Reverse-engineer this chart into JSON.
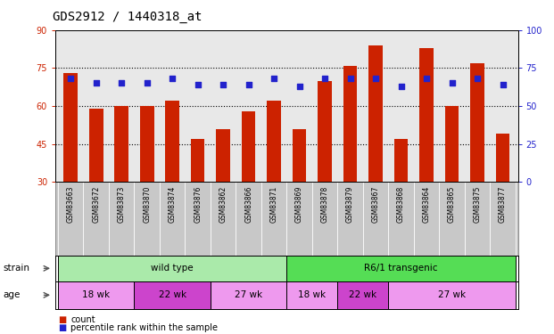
{
  "title": "GDS2912 / 1440318_at",
  "samples": [
    "GSM83663",
    "GSM83672",
    "GSM83873",
    "GSM83870",
    "GSM83874",
    "GSM83876",
    "GSM83862",
    "GSM83866",
    "GSM83871",
    "GSM83869",
    "GSM83878",
    "GSM83879",
    "GSM83867",
    "GSM83868",
    "GSM83864",
    "GSM83865",
    "GSM83875",
    "GSM83877"
  ],
  "counts": [
    73,
    59,
    60,
    60,
    62,
    47,
    51,
    58,
    62,
    51,
    70,
    76,
    84,
    47,
    83,
    60,
    77,
    49
  ],
  "percentiles": [
    68,
    65,
    65,
    65,
    68,
    64,
    64,
    64,
    68,
    63,
    68,
    68,
    68,
    63,
    68,
    65,
    68,
    64
  ],
  "ylim_left": [
    30,
    90
  ],
  "ylim_right": [
    0,
    100
  ],
  "yticks_left": [
    30,
    45,
    60,
    75,
    90
  ],
  "yticks_right": [
    0,
    25,
    50,
    75,
    100
  ],
  "bar_color": "#cc2200",
  "dot_color": "#2222cc",
  "background_color": "#e8e8e8",
  "strain_groups": [
    {
      "label": "wild type",
      "start": 0,
      "end": 9,
      "color": "#aaeaaa"
    },
    {
      "label": "R6/1 transgenic",
      "start": 9,
      "end": 18,
      "color": "#55dd55"
    }
  ],
  "age_groups": [
    {
      "label": "18 wk",
      "start": 0,
      "end": 3,
      "color": "#ee99ee"
    },
    {
      "label": "22 wk",
      "start": 3,
      "end": 6,
      "color": "#cc44cc"
    },
    {
      "label": "27 wk",
      "start": 6,
      "end": 9,
      "color": "#ee99ee"
    },
    {
      "label": "18 wk",
      "start": 9,
      "end": 11,
      "color": "#ee99ee"
    },
    {
      "label": "22 wk",
      "start": 11,
      "end": 13,
      "color": "#cc44cc"
    },
    {
      "label": "27 wk",
      "start": 13,
      "end": 18,
      "color": "#ee99ee"
    }
  ],
  "legend_count_label": "count",
  "legend_pct_label": "percentile rank within the sample",
  "bar_width": 0.55,
  "title_fontsize": 10,
  "tick_fontsize": 7,
  "sample_fontsize": 5.5,
  "row_fontsize": 7.5,
  "legend_fontsize": 7,
  "grid_yticks": [
    45,
    60,
    75
  ],
  "label_area_color": "#c8c8c8",
  "label_border_color": "#888888"
}
